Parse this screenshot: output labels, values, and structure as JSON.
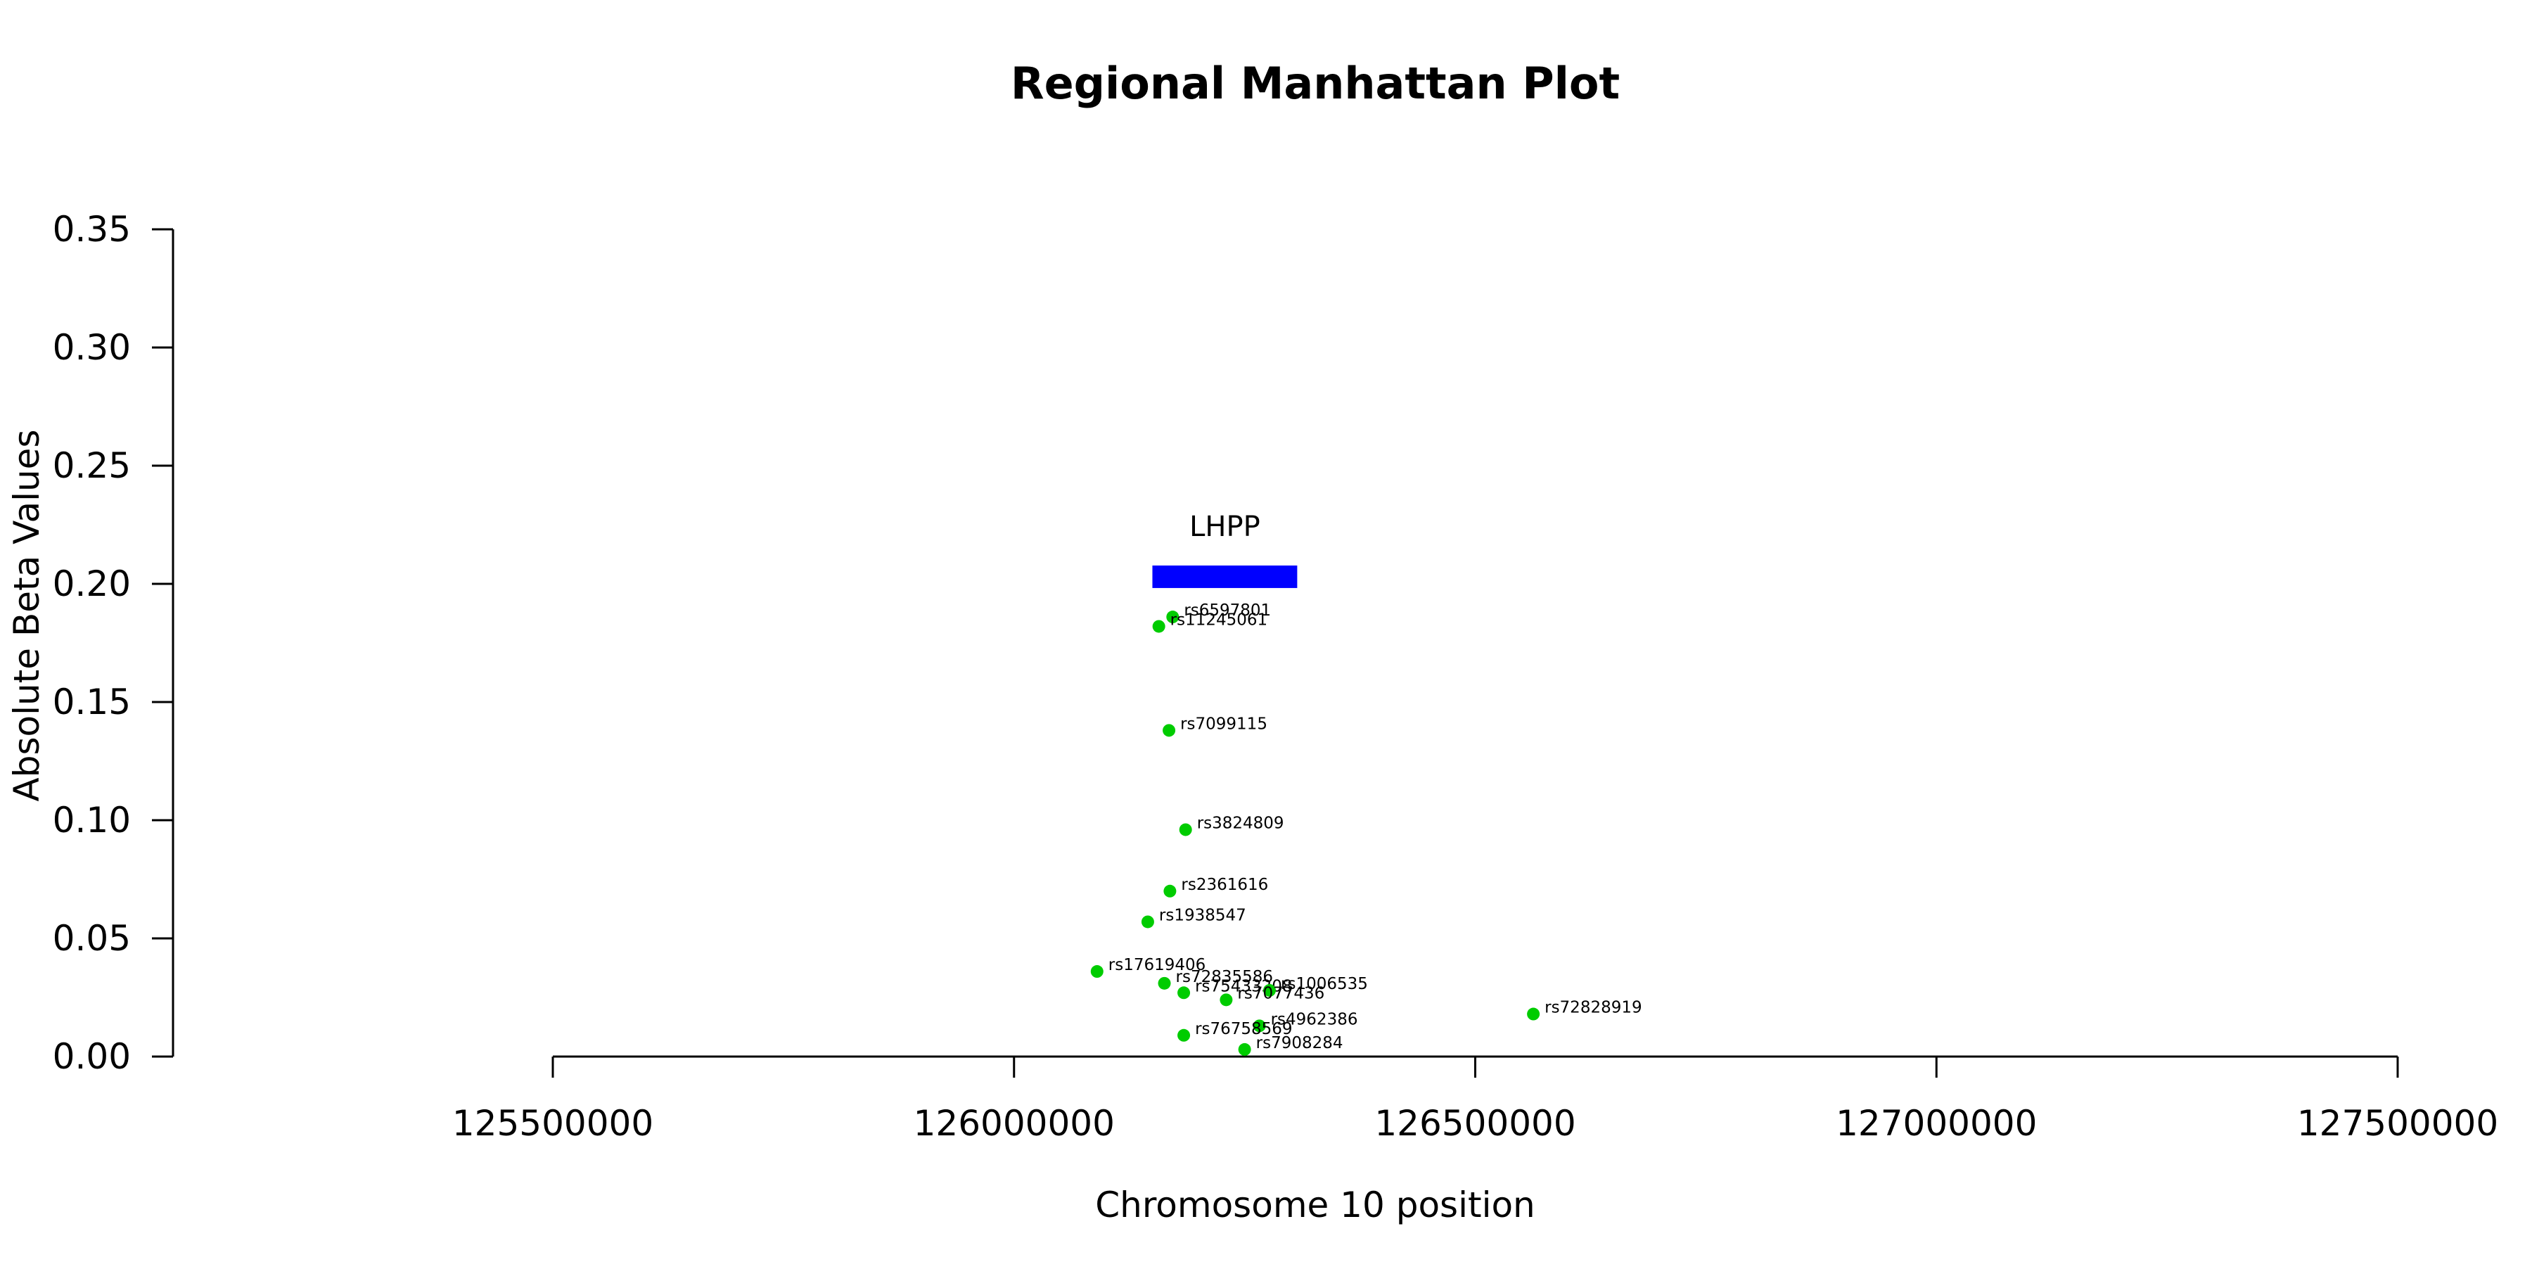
{
  "chart_data": {
    "type": "scatter",
    "title": "Regional Manhattan Plot",
    "xlabel": "Chromosome 10 position",
    "ylabel": "Absolute Beta Values",
    "xlim": [
      125500000,
      127500000
    ],
    "ylim": [
      0,
      0.35
    ],
    "x_ticks": [
      125500000,
      126000000,
      126500000,
      127000000,
      127500000
    ],
    "x_tick_labels": [
      "125500000",
      "126000000",
      "126500000",
      "127000000",
      "127500000"
    ],
    "y_ticks": [
      0,
      0.05,
      0.1,
      0.15,
      0.2,
      0.25,
      0.3,
      0.35
    ],
    "y_tick_labels": [
      "0.00",
      "0.05",
      "0.10",
      "0.15",
      "0.20",
      "0.25",
      "0.30",
      "0.35"
    ],
    "grid": false,
    "point_color": "#00cc00",
    "gene": {
      "name": "LHPP",
      "start": 126150000,
      "end": 126307000,
      "y": 0.203,
      "color": "#0000ff"
    },
    "points": [
      {
        "label": "rs6597801",
        "x": 126172000,
        "y": 0.186
      },
      {
        "label": "rs11245061",
        "x": 126157000,
        "y": 0.182
      },
      {
        "label": "rs7099115",
        "x": 126168000,
        "y": 0.138
      },
      {
        "label": "rs3824809",
        "x": 126186000,
        "y": 0.096
      },
      {
        "label": "rs2361616",
        "x": 126169000,
        "y": 0.07
      },
      {
        "label": "rs1938547",
        "x": 126145000,
        "y": 0.057
      },
      {
        "label": "rs17619406",
        "x": 126090000,
        "y": 0.036
      },
      {
        "label": "rs72835586",
        "x": 126163000,
        "y": 0.031
      },
      {
        "label": "rs75433208",
        "x": 126184000,
        "y": 0.027
      },
      {
        "label": "rs1006535",
        "x": 126277000,
        "y": 0.028
      },
      {
        "label": "rs7077436",
        "x": 126230000,
        "y": 0.024
      },
      {
        "label": "rs72828919",
        "x": 126563000,
        "y": 0.018
      },
      {
        "label": "rs4962386",
        "x": 126266000,
        "y": 0.013
      },
      {
        "label": "rs76758569",
        "x": 126184000,
        "y": 0.009
      },
      {
        "label": "rs7908284",
        "x": 126250000,
        "y": 0.003
      }
    ]
  }
}
